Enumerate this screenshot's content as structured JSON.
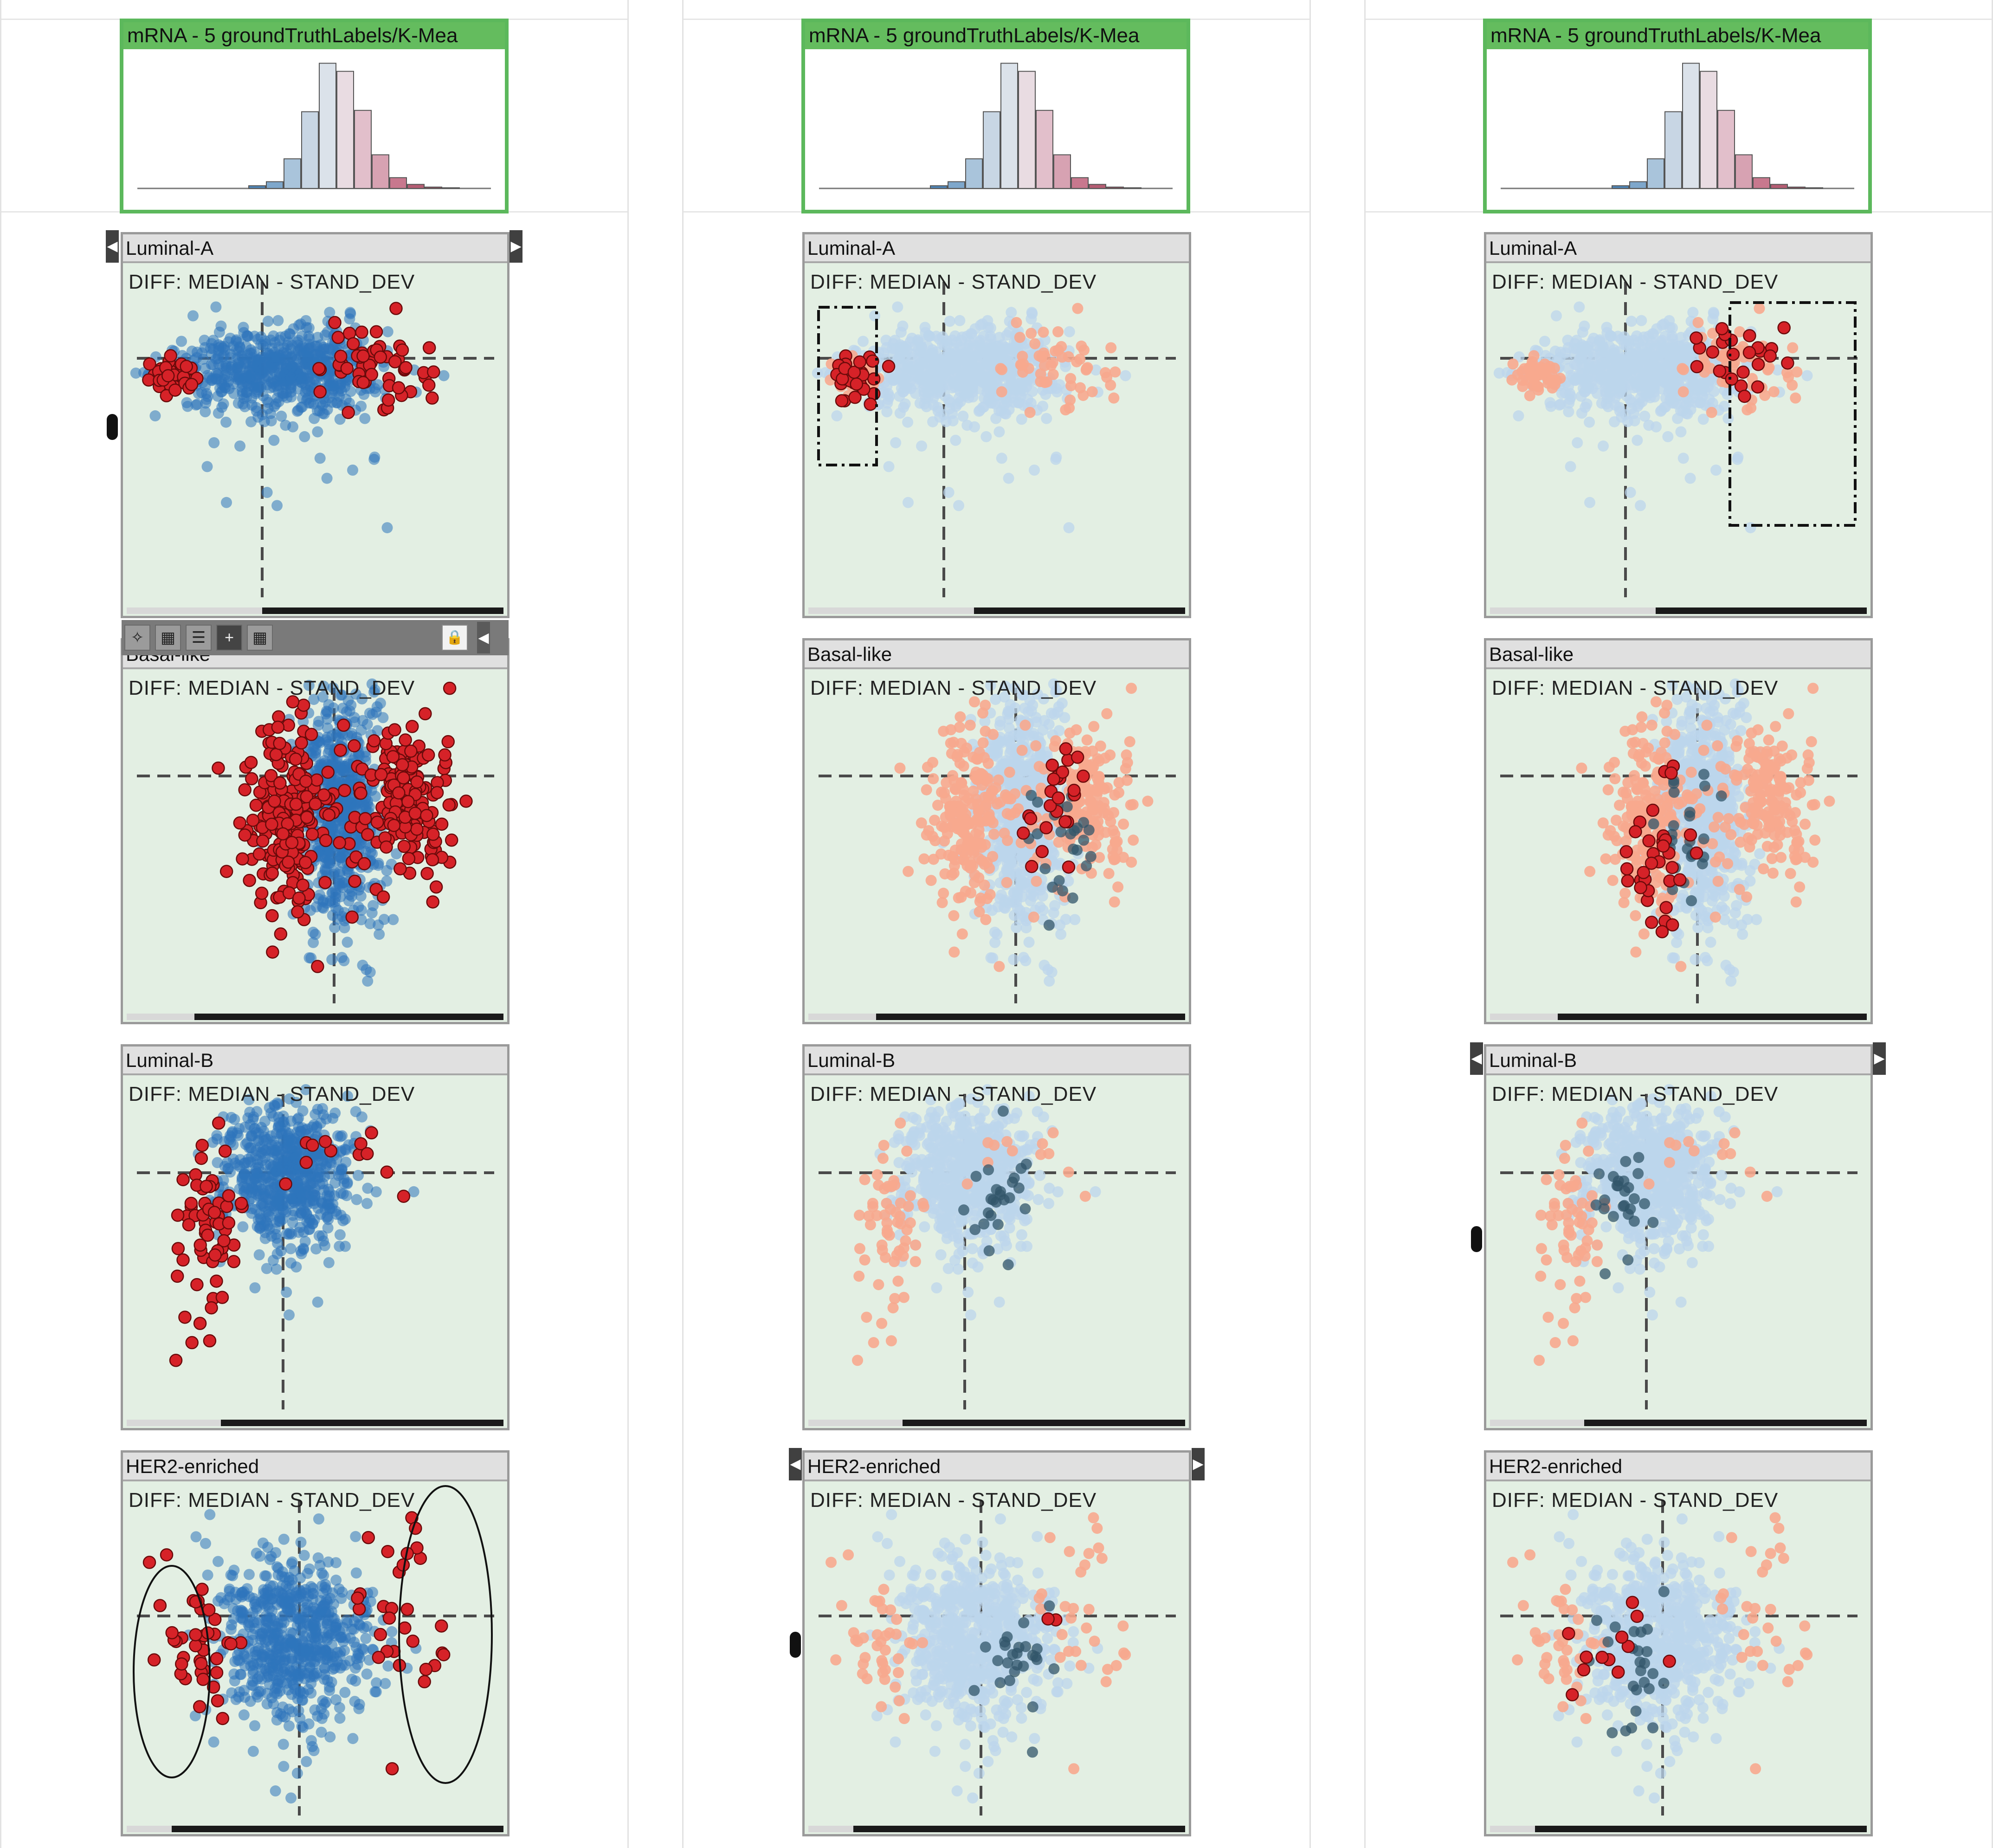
{
  "histogram": {
    "title": "mRNA - 5 groundTruthLabels/K-Mea",
    "bars": [
      0.02,
      0.05,
      0.22,
      0.57,
      0.93,
      0.87,
      0.58,
      0.25,
      0.08,
      0.03,
      0.01,
      0.005
    ],
    "bar_colors": [
      "#4f86b8",
      "#7ea7cb",
      "#a9c4db",
      "#c8d6e4",
      "#dbe2ea",
      "#e9dce2",
      "#e2bfcb",
      "#d7a2b2",
      "#c8788e",
      "#b55d73",
      "#9a4a5e",
      "#8a3c4f"
    ]
  },
  "panel_subtitle": "DIFF: MEDIAN - STAND_DEV",
  "colors": {
    "bg": "#e3efe3",
    "blue_strong": "#2d74bb",
    "blue_light": "#bcd6ec",
    "red_strong": "#d62228",
    "salmon": "#f7a98e",
    "teal_dark": "#31566a"
  },
  "columns": [
    {
      "mode": "full",
      "panels": [
        {
          "label": "Luminal-A"
        },
        {
          "label": "Basal-like"
        },
        {
          "label": "Luminal-B"
        },
        {
          "label": "HER2-enriched"
        }
      ]
    },
    {
      "mode": "highlight-left",
      "panels": [
        {
          "label": "Luminal-A"
        },
        {
          "label": "Basal-like"
        },
        {
          "label": "Luminal-B"
        },
        {
          "label": "HER2-enriched"
        }
      ]
    },
    {
      "mode": "highlight-right",
      "panels": [
        {
          "label": "Luminal-A"
        },
        {
          "label": "Basal-like"
        },
        {
          "label": "Luminal-B"
        },
        {
          "label": "HER2-enriched"
        }
      ]
    }
  ],
  "toolbar": {
    "buttons": [
      "scatter-tool",
      "grid-tool",
      "list-tool",
      "crosshair-tool",
      "color-grid-tool"
    ]
  }
}
